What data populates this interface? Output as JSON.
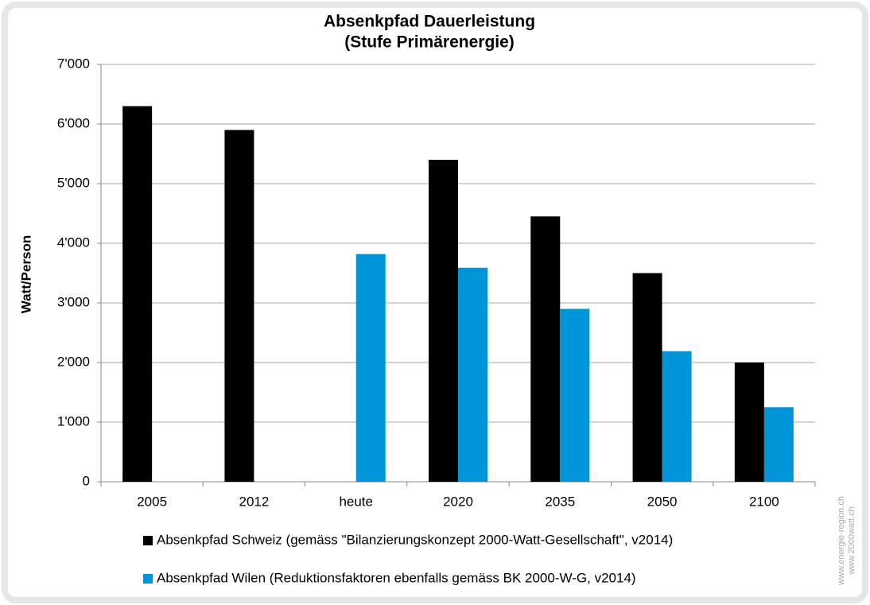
{
  "chart_data": {
    "type": "bar",
    "title": "Absenkpfad Dauerleistung",
    "subtitle": "(Stufe Primärenergie)",
    "y_label": "Watt/Person",
    "categories": [
      "2005",
      "2012",
      "heute",
      "2020",
      "2035",
      "2050",
      "2100"
    ],
    "series": [
      {
        "name": "Absenkpfad Schweiz (gemäss \"Bilanzierungskonzept 2000-Watt-Gesellschaft\", v2014)",
        "color": "#000000",
        "values": [
          6300,
          5900,
          null,
          5400,
          4450,
          3500,
          2000
        ]
      },
      {
        "name": "Absenkpfad Wilen (Reduktionsfaktoren ebenfalls gemäss BK 2000-W-G, v2014)",
        "color": "#0095d9",
        "values": [
          null,
          null,
          3820,
          3590,
          2900,
          2190,
          1250
        ]
      }
    ],
    "ylim": [
      0,
      7000
    ],
    "yticks": [
      0,
      {
        "value": 1000,
        "label": "1'000"
      },
      {
        "value": 2000,
        "label": "2'000"
      },
      {
        "value": 3000,
        "label": "3'000"
      },
      {
        "value": 4000,
        "label": "4'000"
      },
      {
        "value": 5000,
        "label": "5'000"
      },
      {
        "value": 6000,
        "label": "6'000"
      },
      {
        "value": 7000,
        "label": "7'000"
      }
    ],
    "grid": true,
    "annotations": [
      "www.energie-region.ch",
      "www.2000watt.ch"
    ]
  }
}
